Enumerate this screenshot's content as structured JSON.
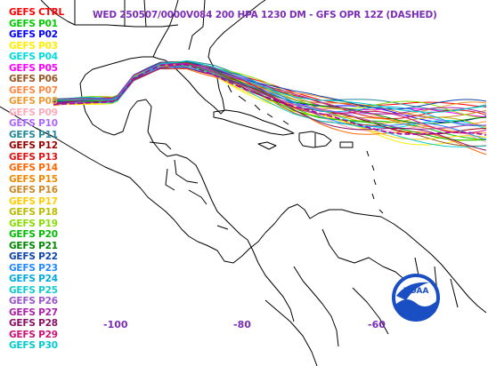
{
  "title": "WED 250507/0000V084  200 HPA 1230 DM - GFS OPR 12Z (DASHED)",
  "members": [
    {
      "label": "GEFS CTRL",
      "color": "#ff0000"
    },
    {
      "label": "GEFS P01",
      "color": "#00cc00"
    },
    {
      "label": "GEFS P02",
      "color": "#0000ff"
    },
    {
      "label": "GEFS P03",
      "color": "#ffee00"
    },
    {
      "label": "GEFS P04",
      "color": "#00dddd"
    },
    {
      "label": "GEFS P05",
      "color": "#ff00ff"
    },
    {
      "label": "GEFS P06",
      "color": "#995522"
    },
    {
      "label": "GEFS P07",
      "color": "#ff8844"
    },
    {
      "label": "GEFS P08",
      "color": "#ee9933"
    },
    {
      "label": "GEFS P09",
      "color": "#ffaabb"
    },
    {
      "label": "GEFS P10",
      "color": "#aa66ff"
    },
    {
      "label": "GEFS P11",
      "color": "#228899"
    },
    {
      "label": "GEFS P12",
      "color": "#990000"
    },
    {
      "label": "GEFS P13",
      "color": "#dd1111"
    },
    {
      "label": "GEFS P14",
      "color": "#ff6600"
    },
    {
      "label": "GEFS P15",
      "color": "#ee8800"
    },
    {
      "label": "GEFS P16",
      "color": "#cc8822"
    },
    {
      "label": "GEFS P17",
      "color": "#ffcc00"
    },
    {
      "label": "GEFS P18",
      "color": "#bbbb00"
    },
    {
      "label": "GEFS P19",
      "color": "#88dd00"
    },
    {
      "label": "GEFS P20",
      "color": "#00bb00"
    },
    {
      "label": "GEFS P21",
      "color": "#008800"
    },
    {
      "label": "GEFS P22",
      "color": "#1144aa"
    },
    {
      "label": "GEFS P23",
      "color": "#2288ff"
    },
    {
      "label": "GEFS P24",
      "color": "#00aadd"
    },
    {
      "label": "GEFS P25",
      "color": "#11cccc"
    },
    {
      "label": "GEFS P26",
      "color": "#9955cc"
    },
    {
      "label": "GEFS P27",
      "color": "#aa22aa"
    },
    {
      "label": "GEFS P28",
      "color": "#881166"
    },
    {
      "label": "GEFS P29",
      "color": "#cc1177"
    },
    {
      "label": "GEFS P30",
      "color": "#00cccc"
    }
  ],
  "lon_ticks": [
    "-100",
    "-80",
    "-60"
  ],
  "logo": {
    "text": "NOAA",
    "color": "#1a4fc4"
  },
  "map_colors": {
    "coast": "#000000",
    "background": "#ffffff"
  }
}
